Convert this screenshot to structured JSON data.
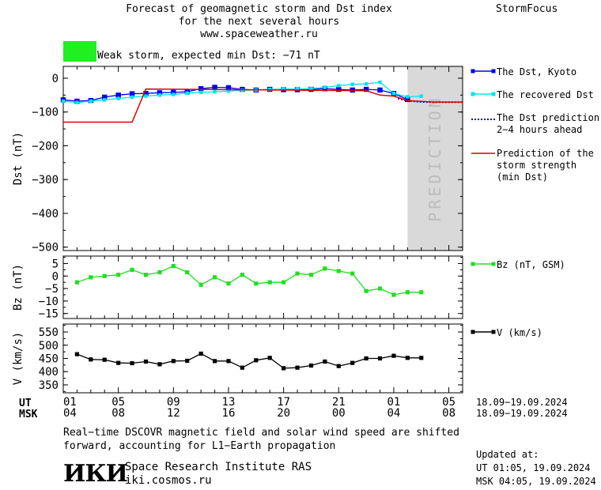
{
  "header": {
    "title_line1": "Forecast of geomagnetic storm and Dst index",
    "title_line2": "for the next several hours",
    "site": "www.spaceweather.ru",
    "brand": "StormFocus",
    "storm_label": "Weak storm, expected min Dst: −71 nT",
    "storm_color": "#22ee22"
  },
  "colors": {
    "dst_kyoto": "#0000ee",
    "dst_recovered": "#00e5ee",
    "dst_prediction": "#0000cc",
    "storm_strength": "#dd0000",
    "bz": "#22dd22",
    "v": "#000000",
    "prediction_band": "#d9d9d9"
  },
  "prediction_text": "PREDICTION",
  "x_axis": {
    "ut_label": "UT",
    "msk_label": "MSK",
    "ut_ticks": [
      "01",
      "05",
      "09",
      "13",
      "17",
      "21",
      "01",
      "05"
    ],
    "msk_ticks": [
      "04",
      "08",
      "12",
      "16",
      "20",
      "00",
      "04",
      "08"
    ],
    "ut_range": "18.09−19.09.2024",
    "msk_range": "18.09−19.09.2024"
  },
  "chart_data": [
    {
      "type": "line",
      "ylabel": "Dst (nT)",
      "ylim": [
        -510,
        35
      ],
      "y_ticks": [
        "0",
        "−100",
        "−200",
        "−300",
        "−400",
        "−500"
      ],
      "y_tick_values": [
        0,
        -100,
        -200,
        -300,
        -400,
        -500
      ],
      "xlim": [
        0,
        29
      ],
      "prediction_start": 25,
      "legend_position": "right",
      "series": [
        {
          "name": "The Dst, Kyoto",
          "x": [
            0,
            1,
            2,
            3,
            4,
            5,
            6,
            7,
            8,
            9,
            10,
            11,
            12,
            13,
            14,
            15,
            16,
            17,
            18,
            19,
            20,
            21,
            22,
            23,
            24,
            25
          ],
          "values": [
            -64,
            -68,
            -66,
            -56,
            -50,
            -46,
            -45,
            -43,
            -42,
            -40,
            -31,
            -27,
            -28,
            -33,
            -35,
            -33,
            -34,
            -34,
            -33,
            -31,
            -33,
            -35,
            -33,
            -35,
            -45,
            -63
          ]
        },
        {
          "name": "The recovered Dst",
          "x": [
            0,
            1,
            2,
            3,
            4,
            5,
            6,
            7,
            8,
            9,
            10,
            11,
            12,
            13,
            14,
            15,
            16,
            17,
            18,
            19,
            20,
            21,
            22,
            23,
            24,
            25,
            26
          ],
          "values": [
            -68,
            -72,
            -68,
            -64,
            -60,
            -56,
            -53,
            -50,
            -48,
            -44,
            -42,
            -40,
            -38,
            -36,
            -35,
            -33,
            -32,
            -32,
            -31,
            -27,
            -22,
            -18,
            -17,
            -12,
            -45,
            -55,
            -53
          ]
        },
        {
          "name": "The Dst prediction 2−4 hours ahead",
          "x": [
            24.3,
            25,
            26,
            27,
            28,
            29
          ],
          "values": [
            -60,
            -67,
            -70,
            -71,
            -71,
            -71
          ]
        },
        {
          "name": "Prediction of the storm strength (min Dst)",
          "x": [
            0,
            5,
            6,
            22,
            23,
            24,
            25,
            27,
            29
          ],
          "values": [
            -130,
            -130,
            -32,
            -37,
            -50,
            -53,
            -66,
            -71,
            -71
          ]
        }
      ]
    },
    {
      "type": "line",
      "ylabel": "Bz (nT)",
      "ylim": [
        -17,
        8
      ],
      "y_ticks": [
        "5",
        "0",
        "−5",
        "−10",
        "−15"
      ],
      "y_tick_values": [
        5,
        0,
        -5,
        -10,
        -15
      ],
      "xlim": [
        0,
        29
      ],
      "legend_position": "right",
      "series": [
        {
          "name": "Bz (nT, GSM)",
          "x": [
            1,
            2,
            3,
            4,
            5,
            6,
            7,
            8,
            9,
            10,
            11,
            12,
            13,
            14,
            15,
            16,
            17,
            18,
            19,
            20,
            21,
            22,
            23,
            24,
            25,
            26
          ],
          "values": [
            -2.5,
            -0.5,
            0,
            0.5,
            2.5,
            0.5,
            1.5,
            4,
            1.5,
            -3.5,
            -0.5,
            -3,
            0.5,
            -3,
            -2.5,
            -2.5,
            1,
            0.5,
            3,
            2,
            1,
            -6,
            -5,
            -7.5,
            -6.5,
            -6.5
          ]
        }
      ]
    },
    {
      "type": "line",
      "ylabel": "V (km/s)",
      "ylim": [
        320,
        580
      ],
      "y_ticks": [
        "550",
        "500",
        "450",
        "400",
        "350"
      ],
      "y_tick_values": [
        550,
        500,
        450,
        400,
        350
      ],
      "xlim": [
        0,
        29
      ],
      "legend_position": "right",
      "series": [
        {
          "name": "V (km/s)",
          "x": [
            1,
            2,
            3,
            4,
            5,
            6,
            7,
            8,
            9,
            10,
            11,
            12,
            13,
            14,
            15,
            16,
            17,
            18,
            19,
            20,
            21,
            22,
            23,
            24,
            25,
            26
          ],
          "values": [
            466,
            446,
            445,
            433,
            432,
            438,
            428,
            440,
            441,
            468,
            440,
            440,
            415,
            443,
            452,
            413,
            415,
            423,
            438,
            421,
            433,
            450,
            450,
            460,
            452,
            452
          ]
        }
      ]
    }
  ],
  "footer": {
    "note_line1": "Real−time DSCOVR magnetic field and solar wind speed are shifted",
    "note_line2": "forward, accounting for L1−Earth propagation",
    "logo_text": "ИКИ",
    "institute": "Space Research Institute RAS",
    "institute_site": "iki.cosmos.ru",
    "updated_label": "Updated at:",
    "updated_ut": "UT   01:05, 19.09.2024",
    "updated_msk": "MSK 04:05, 19.09.2024"
  }
}
